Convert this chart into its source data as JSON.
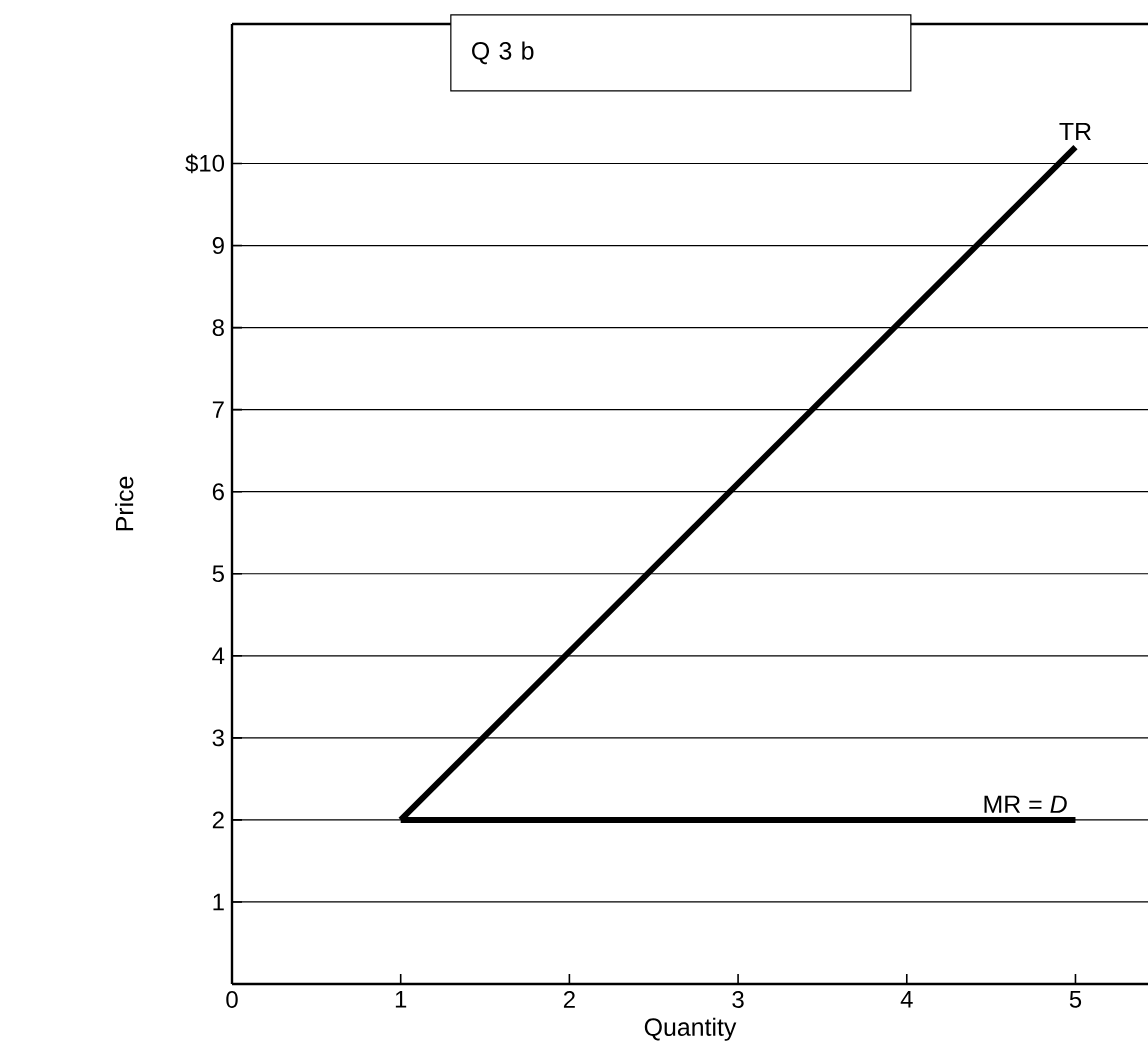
{
  "chart_data": {
    "type": "line",
    "title": "Q 3 b",
    "xlabel": "Quantity",
    "ylabel": "Price",
    "series": [
      {
        "name": "TR",
        "color": "#000000",
        "values": [
          2,
          10.2
        ]
      },
      {
        "name": "MR = *D*",
        "color": "#000000",
        "values": [
          2,
          2
        ]
      }
    ],
    "x": [
      1,
      5
    ],
    "xlim": [
      0,
      5.43
    ],
    "ylim": [
      0,
      11.7
    ],
    "xticks": [
      {
        "value": 0,
        "label": "0"
      },
      1,
      2,
      3,
      4,
      5
    ],
    "yticks": [
      1,
      2,
      3,
      4,
      5,
      6,
      7,
      8,
      9,
      {
        "value": 10,
        "label": "$10"
      }
    ],
    "grid": "y"
  }
}
